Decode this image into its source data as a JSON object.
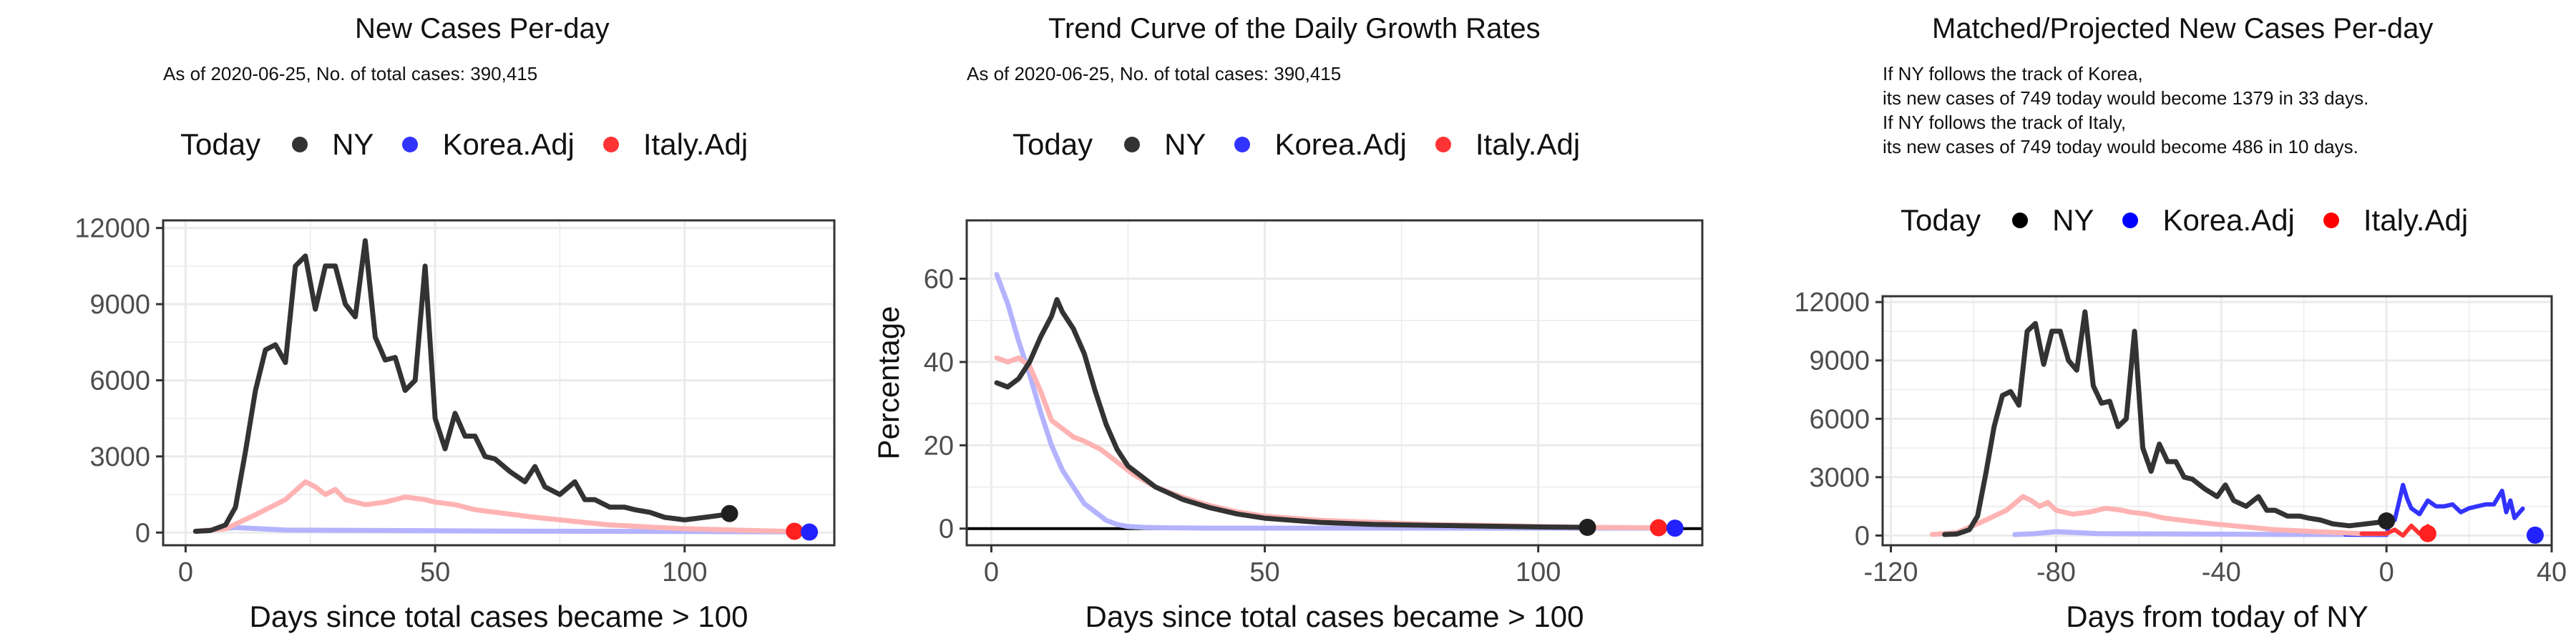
{
  "legend": {
    "today": "Today",
    "ny": "NY",
    "korea": "Korea.Adj",
    "italy": "Italy.Adj"
  },
  "colors": {
    "ny": "#333333",
    "korea": "#3333ff",
    "italy": "#ff3333",
    "korea_faded": "#b3b3ff",
    "italy_faded": "#ffb3b3",
    "grid": "#ebebeb"
  },
  "chart_data": [
    {
      "type": "line",
      "title": "New Cases Per-day",
      "subtitle": "As of 2020-06-25, No. of total cases: 390,415",
      "xlabel": "Days since total cases became > 100",
      "ylabel": "",
      "xlim": [
        -4.5,
        130
      ],
      "ylim": [
        -500,
        12300
      ],
      "xticks": [
        0,
        50,
        100
      ],
      "yticks": [
        0,
        3000,
        6000,
        9000,
        12000
      ],
      "series": [
        {
          "name": "NY",
          "x": [
            2,
            5,
            8,
            10,
            12,
            14,
            16,
            18,
            20,
            22,
            24,
            26,
            28,
            30,
            32,
            34,
            36,
            38,
            40,
            42,
            44,
            46,
            48,
            50,
            52,
            54,
            56,
            58,
            60,
            62,
            65,
            68,
            70,
            72,
            75,
            78,
            80,
            82,
            85,
            88,
            90,
            93,
            96,
            100,
            104,
            108
          ],
          "y": [
            50,
            80,
            300,
            1000,
            3200,
            5600,
            7200,
            7400,
            6700,
            10500,
            10900,
            8800,
            10500,
            10500,
            9000,
            8500,
            11500,
            7700,
            6800,
            6900,
            5600,
            6000,
            10500,
            4500,
            3300,
            4700,
            3800,
            3800,
            3000,
            2900,
            2400,
            2000,
            2600,
            1800,
            1500,
            2000,
            1300,
            1300,
            1000,
            1000,
            900,
            800,
            600,
            500,
            600,
            700
          ]
        },
        {
          "name": "Italy.Adj",
          "x": [
            2,
            8,
            14,
            20,
            24,
            26,
            28,
            30,
            32,
            36,
            40,
            44,
            48,
            50,
            54,
            58,
            62,
            66,
            70,
            75,
            80,
            85,
            90,
            95,
            100,
            110,
            120
          ],
          "y": [
            50,
            150,
            700,
            1300,
            2000,
            1800,
            1500,
            1700,
            1300,
            1100,
            1200,
            1400,
            1300,
            1200,
            1100,
            900,
            800,
            700,
            600,
            500,
            400,
            300,
            250,
            200,
            150,
            100,
            50
          ]
        },
        {
          "name": "Korea.Adj",
          "x": [
            2,
            5,
            10,
            20,
            40,
            60,
            80,
            100,
            120,
            125
          ],
          "y": [
            50,
            100,
            200,
            100,
            80,
            60,
            50,
            40,
            30,
            20
          ]
        }
      ],
      "today": [
        {
          "x": 109,
          "y": 749,
          "series": "NY"
        },
        {
          "x": 122,
          "y": 50,
          "series": "Italy.Adj"
        },
        {
          "x": 125,
          "y": 20,
          "series": "Korea.Adj"
        }
      ]
    },
    {
      "type": "line",
      "title": "Trend Curve of the Daily Growth Rates",
      "subtitle": "As of 2020-06-25, No. of total cases: 390,415",
      "xlabel": "Days since total cases became > 100",
      "ylabel": "Percentage",
      "xlim": [
        -4.5,
        130
      ],
      "ylim": [
        -4,
        74
      ],
      "xticks": [
        0,
        50,
        100
      ],
      "yticks": [
        0,
        20,
        40,
        60
      ],
      "series": [
        {
          "name": "NY",
          "x": [
            1,
            3,
            5,
            7,
            9,
            11,
            12,
            13,
            15,
            17,
            19,
            21,
            23,
            25,
            30,
            35,
            40,
            45,
            50,
            60,
            70,
            80,
            90,
            100,
            109
          ],
          "y": [
            35,
            34,
            36,
            40,
            46,
            51,
            55,
            52,
            48,
            42,
            33,
            25,
            19,
            15,
            10,
            7,
            5,
            3.5,
            2.5,
            1.5,
            1,
            0.8,
            0.6,
            0.4,
            0.3
          ]
        },
        {
          "name": "Korea.Adj",
          "x": [
            1,
            3,
            5,
            7,
            9,
            11,
            13,
            15,
            17,
            19,
            21,
            23,
            25,
            28,
            32,
            40,
            60,
            80,
            100,
            125
          ],
          "y": [
            61,
            54,
            45,
            37,
            28,
            20,
            14,
            10,
            6,
            4,
            2,
            1,
            0.5,
            0.3,
            0.2,
            0.1,
            0.1,
            0.1,
            0.1,
            0.1
          ]
        },
        {
          "name": "Italy.Adj",
          "x": [
            1,
            3,
            5,
            7,
            9,
            11,
            13,
            15,
            17,
            20,
            23,
            26,
            30,
            35,
            40,
            45,
            50,
            60,
            70,
            80,
            90,
            100,
            110,
            122
          ],
          "y": [
            41,
            40,
            41,
            39,
            33,
            26,
            24,
            22,
            21,
            19,
            16,
            13,
            10,
            7.5,
            5.5,
            4,
            3,
            2,
            1.5,
            1,
            0.8,
            0.5,
            0.3,
            0.2
          ]
        }
      ],
      "today": [
        {
          "x": 109,
          "y": 0.3,
          "series": "NY"
        },
        {
          "x": 122,
          "y": 0.2,
          "series": "Italy.Adj"
        },
        {
          "x": 125,
          "y": 0.1,
          "series": "Korea.Adj"
        }
      ]
    },
    {
      "type": "line",
      "title": "Matched/Projected New Cases Per-day",
      "subtitle_lines": [
        "If NY follows the track of Korea,",
        "its new cases of 749 today would become 1379 in 33 days.",
        "If NY follows the track of Italy,",
        "its new cases of 749 today would become 486 in 10 days."
      ],
      "xlabel": "Days from today of NY",
      "ylabel": "",
      "xlim": [
        -122,
        40
      ],
      "ylim": [
        -500,
        12300
      ],
      "xticks": [
        -120,
        -80,
        -40,
        0,
        40
      ],
      "yticks": [
        0,
        3000,
        6000,
        9000,
        12000
      ],
      "series": [
        {
          "name": "NY",
          "x": [
            -107,
            -104,
            -101,
            -99,
            -97,
            -95,
            -93,
            -91,
            -89,
            -87,
            -85,
            -83,
            -81,
            -79,
            -77,
            -75,
            -73,
            -71,
            -69,
            -67,
            -65,
            -63,
            -61,
            -59,
            -57,
            -55,
            -53,
            -51,
            -49,
            -47,
            -44,
            -41,
            -39,
            -37,
            -34,
            -31,
            -29,
            -27,
            -24,
            -21,
            -19,
            -16,
            -13,
            -9,
            -5,
            -1,
            0
          ],
          "y": [
            50,
            80,
            300,
            1000,
            3200,
            5600,
            7200,
            7400,
            6700,
            10500,
            10900,
            8800,
            10500,
            10500,
            9000,
            8500,
            11500,
            7700,
            6800,
            6900,
            5600,
            6000,
            10500,
            4500,
            3300,
            4700,
            3800,
            3800,
            3000,
            2900,
            2400,
            2000,
            2600,
            1800,
            1500,
            2000,
            1300,
            1300,
            1000,
            1000,
            900,
            800,
            600,
            500,
            600,
            700,
            749
          ]
        },
        {
          "name": "Italy.Adj",
          "x": [
            -110,
            -104,
            -98,
            -92,
            -88,
            -86,
            -84,
            -82,
            -80,
            -76,
            -72,
            -68,
            -64,
            -62,
            -58,
            -54,
            -50,
            -46,
            -42,
            -37,
            -32,
            -27,
            -22,
            -17,
            -12,
            -6,
            0,
            2,
            4,
            6,
            8,
            10
          ],
          "y": [
            50,
            150,
            700,
            1300,
            2000,
            1800,
            1500,
            1700,
            1300,
            1100,
            1200,
            1400,
            1300,
            1200,
            1100,
            900,
            800,
            700,
            600,
            500,
            400,
            300,
            250,
            200,
            150,
            100,
            100,
            300,
            0,
            500,
            100,
            486
          ]
        },
        {
          "name": "Korea.Adj",
          "x": [
            -90,
            -85,
            -80,
            -70,
            -50,
            -30,
            -10,
            0,
            1,
            2,
            3,
            4,
            5,
            6,
            8,
            10,
            12,
            14,
            16,
            18,
            20,
            22,
            24,
            26,
            28,
            29,
            30,
            31,
            33
          ],
          "y": [
            50,
            100,
            200,
            100,
            80,
            60,
            50,
            40,
            900,
            800,
            1700,
            2600,
            1900,
            1400,
            1100,
            1800,
            1500,
            1500,
            1600,
            1200,
            1400,
            1500,
            1600,
            1600,
            2300,
            1200,
            1800,
            900,
            1379
          ]
        }
      ],
      "today": [
        {
          "x": 0,
          "y": 749,
          "series": "NY"
        },
        {
          "x": 10,
          "y": 100,
          "series": "Italy.Adj"
        },
        {
          "x": 36,
          "y": 20,
          "series": "Korea.Adj"
        }
      ]
    }
  ]
}
